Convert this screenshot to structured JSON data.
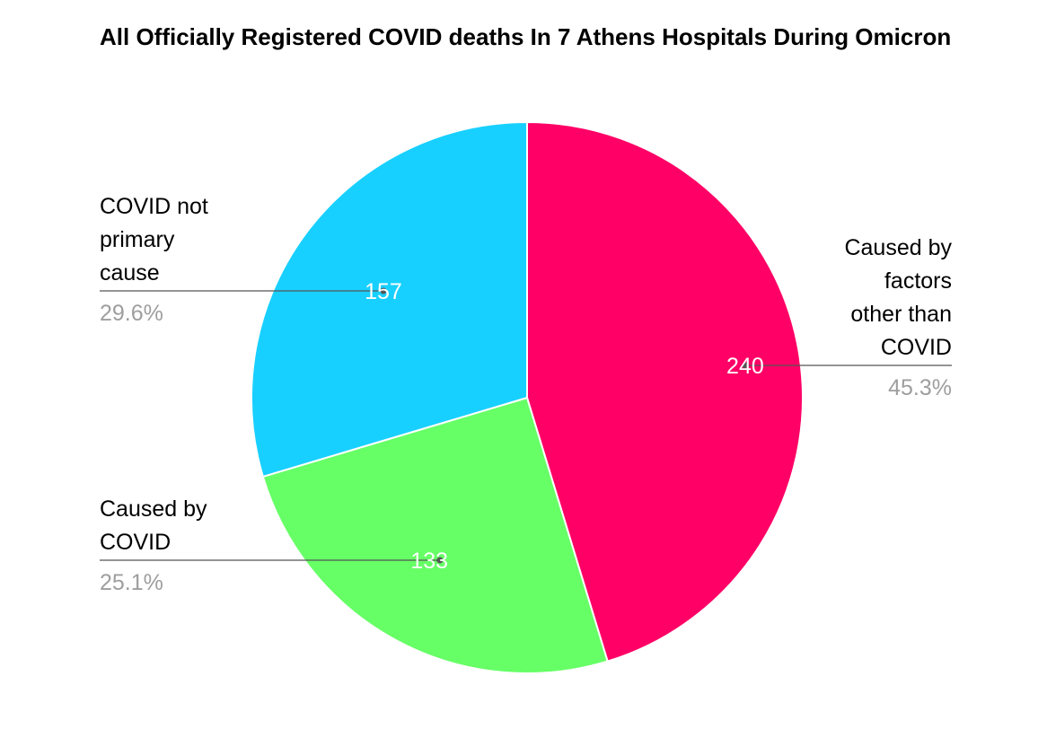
{
  "chart_data": {
    "type": "pie",
    "title": "All Officially Registered COVID deaths In 7 Athens Hospitals During Omicron",
    "slices": [
      {
        "label": "Caused by factors other than COVID",
        "value": 240,
        "value_label": "240",
        "percent_label": "45.3%",
        "color": "#ff0066"
      },
      {
        "label": "Caused by COVID",
        "value": 133,
        "value_label": "133",
        "percent_label": "25.1%",
        "color": "#66ff66"
      },
      {
        "label": "COVID not primary cause",
        "value": 157,
        "value_label": "157",
        "percent_label": "29.6%",
        "color": "#18d0ff"
      }
    ],
    "start_angle": "12 o'clock",
    "direction": "clockwise",
    "legend": "none"
  }
}
